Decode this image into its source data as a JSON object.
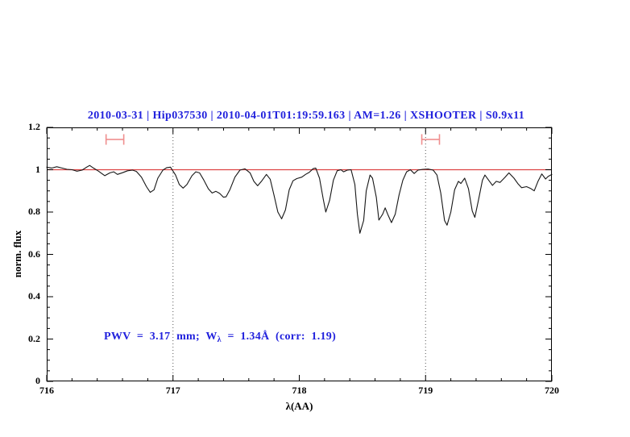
{
  "chart_data": {
    "type": "line",
    "title": "2010-03-31 | Hip037530 | 2010-04-01T01:19:59.163 | AM=1.26 | XSHOOTER | S0.9x11",
    "title_color": "#2222dd",
    "xlabel": "λ(AA)",
    "ylabel": "norm. flux",
    "xlim": [
      716,
      720
    ],
    "ylim": [
      0,
      1.2
    ],
    "grid": false,
    "xticks": {
      "major": [
        716,
        717,
        718,
        719,
        720
      ],
      "labels": [
        "716",
        "717",
        "718",
        "719",
        "720"
      ],
      "minor_step": 0.2
    },
    "yticks": {
      "major": [
        0,
        0.2,
        0.4,
        0.6,
        0.8,
        1.0,
        1.2
      ],
      "labels": [
        "0",
        "0.2",
        "0.4",
        "0.6",
        "0.8",
        "1",
        "1.2"
      ],
      "minor_step": 0.05
    },
    "dotted_guides": [
      717,
      719
    ],
    "continuum": {
      "y": 1.0,
      "color": "#dd4444"
    },
    "markers": [
      {
        "x1": 716.47,
        "x2": 716.61,
        "y": 1.143,
        "cap_half": 0.025,
        "color": "#ef8f8f"
      },
      {
        "x1": 718.97,
        "x2": 719.11,
        "y": 1.143,
        "cap_half": 0.025,
        "color": "#ef8f8f"
      }
    ],
    "annotation": {
      "prefix": "PWV  =  3.17  mm;  W",
      "sub": "λ",
      "suffix": "  =  1.34Å  (corr:  1.19)",
      "color": "#2222dd",
      "pwv_mm": 3.17,
      "w_lambda_A": 1.34,
      "corr": 1.19
    },
    "series": [
      {
        "name": "spectrum",
        "color": "#161616",
        "points": [
          [
            716.0,
            1.012
          ],
          [
            716.04,
            1.008
          ],
          [
            716.08,
            1.014
          ],
          [
            716.12,
            1.008
          ],
          [
            716.16,
            1.002
          ],
          [
            716.2,
            1.0
          ],
          [
            716.24,
            0.993
          ],
          [
            716.28,
            0.998
          ],
          [
            716.31,
            1.01
          ],
          [
            716.34,
            1.02
          ],
          [
            716.37,
            1.008
          ],
          [
            716.41,
            0.993
          ],
          [
            716.46,
            0.972
          ],
          [
            716.5,
            0.985
          ],
          [
            716.53,
            0.99
          ],
          [
            716.56,
            0.978
          ],
          [
            716.6,
            0.986
          ],
          [
            716.64,
            0.995
          ],
          [
            716.68,
            0.998
          ],
          [
            716.71,
            0.992
          ],
          [
            716.75,
            0.965
          ],
          [
            716.79,
            0.92
          ],
          [
            716.82,
            0.893
          ],
          [
            716.85,
            0.905
          ],
          [
            716.88,
            0.96
          ],
          [
            716.92,
            0.998
          ],
          [
            716.95,
            1.01
          ],
          [
            716.98,
            1.012
          ],
          [
            717.02,
            0.975
          ],
          [
            717.05,
            0.93
          ],
          [
            717.08,
            0.913
          ],
          [
            717.11,
            0.93
          ],
          [
            717.15,
            0.972
          ],
          [
            717.18,
            0.99
          ],
          [
            717.21,
            0.985
          ],
          [
            717.24,
            0.955
          ],
          [
            717.28,
            0.91
          ],
          [
            717.31,
            0.89
          ],
          [
            717.34,
            0.898
          ],
          [
            717.37,
            0.888
          ],
          [
            717.4,
            0.87
          ],
          [
            717.42,
            0.872
          ],
          [
            717.45,
            0.905
          ],
          [
            717.49,
            0.965
          ],
          [
            717.53,
            0.998
          ],
          [
            717.57,
            1.004
          ],
          [
            717.61,
            0.985
          ],
          [
            717.64,
            0.945
          ],
          [
            717.67,
            0.924
          ],
          [
            717.7,
            0.945
          ],
          [
            717.74,
            0.978
          ],
          [
            717.77,
            0.955
          ],
          [
            717.8,
            0.88
          ],
          [
            717.83,
            0.8
          ],
          [
            717.86,
            0.768
          ],
          [
            717.89,
            0.81
          ],
          [
            717.92,
            0.905
          ],
          [
            717.95,
            0.948
          ],
          [
            717.98,
            0.958
          ],
          [
            718.02,
            0.965
          ],
          [
            718.05,
            0.978
          ],
          [
            718.08,
            0.988
          ],
          [
            718.11,
            1.005
          ],
          [
            718.13,
            1.008
          ],
          [
            718.16,
            0.96
          ],
          [
            718.19,
            0.86
          ],
          [
            718.21,
            0.8
          ],
          [
            718.24,
            0.855
          ],
          [
            718.27,
            0.95
          ],
          [
            718.3,
            0.995
          ],
          [
            718.33,
            1.0
          ],
          [
            718.35,
            0.99
          ],
          [
            718.38,
            0.998
          ],
          [
            718.41,
            1.0
          ],
          [
            718.44,
            0.93
          ],
          [
            718.46,
            0.79
          ],
          [
            718.48,
            0.7
          ],
          [
            718.51,
            0.76
          ],
          [
            718.53,
            0.9
          ],
          [
            718.56,
            0.975
          ],
          [
            718.58,
            0.96
          ],
          [
            718.61,
            0.87
          ],
          [
            718.63,
            0.762
          ],
          [
            718.66,
            0.79
          ],
          [
            718.68,
            0.82
          ],
          [
            718.7,
            0.79
          ],
          [
            718.73,
            0.75
          ],
          [
            718.76,
            0.79
          ],
          [
            718.79,
            0.88
          ],
          [
            718.82,
            0.95
          ],
          [
            718.85,
            0.99
          ],
          [
            718.88,
            1.0
          ],
          [
            718.91,
            0.982
          ],
          [
            718.94,
            0.998
          ],
          [
            718.98,
            1.002
          ],
          [
            719.02,
            1.003
          ],
          [
            719.06,
            0.998
          ],
          [
            719.09,
            0.975
          ],
          [
            719.12,
            0.89
          ],
          [
            719.15,
            0.76
          ],
          [
            719.17,
            0.738
          ],
          [
            719.2,
            0.8
          ],
          [
            719.23,
            0.905
          ],
          [
            719.26,
            0.945
          ],
          [
            719.28,
            0.935
          ],
          [
            719.31,
            0.96
          ],
          [
            719.34,
            0.91
          ],
          [
            719.37,
            0.805
          ],
          [
            719.39,
            0.775
          ],
          [
            719.42,
            0.86
          ],
          [
            719.45,
            0.95
          ],
          [
            719.47,
            0.975
          ],
          [
            719.5,
            0.95
          ],
          [
            719.53,
            0.926
          ],
          [
            719.56,
            0.945
          ],
          [
            719.59,
            0.94
          ],
          [
            719.63,
            0.965
          ],
          [
            719.66,
            0.985
          ],
          [
            719.7,
            0.96
          ],
          [
            719.73,
            0.935
          ],
          [
            719.76,
            0.915
          ],
          [
            719.8,
            0.92
          ],
          [
            719.83,
            0.912
          ],
          [
            719.86,
            0.9
          ],
          [
            719.89,
            0.945
          ],
          [
            719.92,
            0.98
          ],
          [
            719.95,
            0.956
          ],
          [
            719.97,
            0.968
          ],
          [
            720.0,
            0.978
          ]
        ]
      }
    ]
  }
}
